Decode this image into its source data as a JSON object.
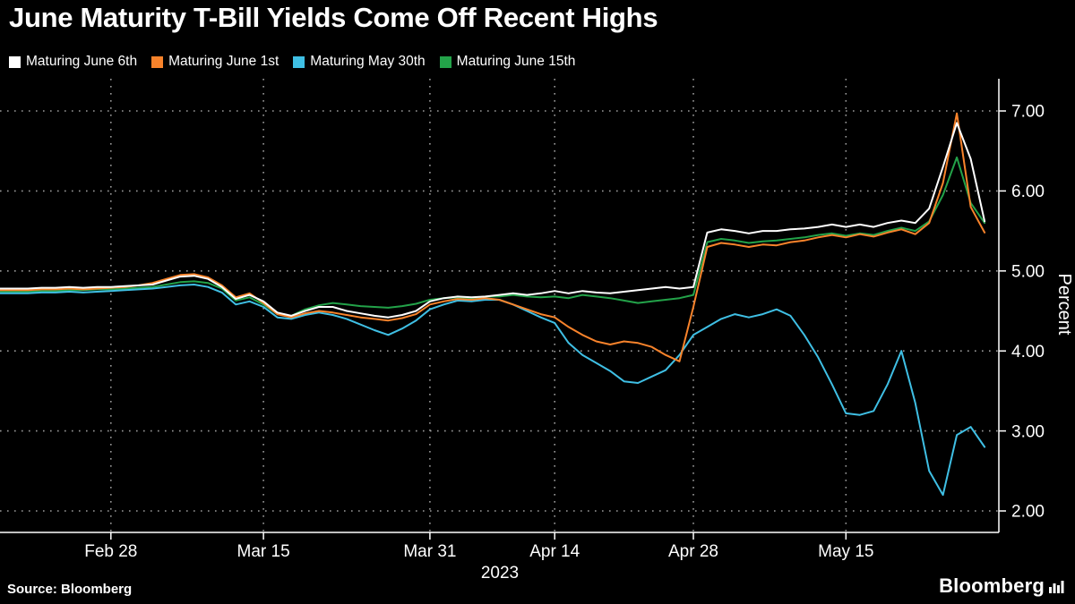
{
  "chart_data": {
    "type": "line",
    "title": "June Maturity T-Bill Yields Come Off Recent Highs",
    "xlabel": "2023",
    "ylabel": "Percent",
    "ylim": [
      1.7,
      7.4
    ],
    "grid": "dotted",
    "legend_position": "top-left",
    "x_description": "Business days from mid-Feb 2023 (index 0) through May 30 2023 (index 71)",
    "x_tick_indices": [
      8,
      19,
      31,
      40,
      50,
      61
    ],
    "x_tick_labels": [
      "Feb 28",
      "Mar 15",
      "Mar 31",
      "Apr 14",
      "Apr 28",
      "May 15"
    ],
    "y_ticks": [
      7,
      6,
      5,
      4,
      3,
      2
    ],
    "y_tick_labels": [
      "7.00",
      "6.00",
      "5.00",
      "4.00",
      "3.00",
      "2.00"
    ],
    "series": [
      {
        "name": "Maturing June 6th",
        "color": "#ffffff",
        "values": [
          4.78,
          4.78,
          4.78,
          4.79,
          4.79,
          4.8,
          4.79,
          4.8,
          4.8,
          4.81,
          4.82,
          4.83,
          4.88,
          4.93,
          4.94,
          4.9,
          4.8,
          4.65,
          4.7,
          4.62,
          4.48,
          4.44,
          4.5,
          4.55,
          4.55,
          4.5,
          4.47,
          4.44,
          4.42,
          4.45,
          4.5,
          4.62,
          4.66,
          4.68,
          4.67,
          4.68,
          4.7,
          4.72,
          4.7,
          4.72,
          4.75,
          4.72,
          4.75,
          4.73,
          4.72,
          4.74,
          4.76,
          4.78,
          4.8,
          4.78,
          4.8,
          5.48,
          5.52,
          5.5,
          5.47,
          5.5,
          5.5,
          5.52,
          5.53,
          5.55,
          5.58,
          5.55,
          5.58,
          5.55,
          5.6,
          5.63,
          5.6,
          5.78,
          6.3,
          6.85,
          6.4,
          5.62
        ]
      },
      {
        "name": "Maturing June 1st",
        "color": "#f8832b",
        "values": [
          4.76,
          4.76,
          4.76,
          4.77,
          4.77,
          4.78,
          4.77,
          4.78,
          4.79,
          4.8,
          4.82,
          4.85,
          4.9,
          4.95,
          4.96,
          4.92,
          4.82,
          4.67,
          4.72,
          4.6,
          4.46,
          4.42,
          4.47,
          4.5,
          4.48,
          4.45,
          4.42,
          4.4,
          4.38,
          4.41,
          4.46,
          4.58,
          4.62,
          4.65,
          4.64,
          4.66,
          4.64,
          4.58,
          4.52,
          4.46,
          4.42,
          4.3,
          4.2,
          4.12,
          4.08,
          4.12,
          4.1,
          4.05,
          3.95,
          3.87,
          4.55,
          5.3,
          5.35,
          5.33,
          5.3,
          5.33,
          5.32,
          5.36,
          5.38,
          5.42,
          5.45,
          5.42,
          5.46,
          5.43,
          5.48,
          5.52,
          5.46,
          5.6,
          6.1,
          6.97,
          5.8,
          5.48
        ]
      },
      {
        "name": "Maturing May 30th",
        "color": "#3fbfe4",
        "values": [
          4.72,
          4.72,
          4.72,
          4.73,
          4.73,
          4.74,
          4.73,
          4.74,
          4.75,
          4.76,
          4.77,
          4.78,
          4.8,
          4.82,
          4.83,
          4.8,
          4.73,
          4.58,
          4.62,
          4.55,
          4.42,
          4.4,
          4.45,
          4.48,
          4.45,
          4.4,
          4.33,
          4.26,
          4.2,
          4.28,
          4.38,
          4.52,
          4.58,
          4.63,
          4.62,
          4.64,
          4.64,
          4.58,
          4.5,
          4.42,
          4.35,
          4.1,
          3.95,
          3.85,
          3.75,
          3.62,
          3.6,
          3.68,
          3.76,
          3.95,
          4.2,
          4.3,
          4.4,
          4.46,
          4.42,
          4.46,
          4.52,
          4.44,
          4.2,
          3.92,
          3.58,
          3.22,
          3.2,
          3.25,
          3.58,
          4.0,
          3.35,
          2.5,
          2.2,
          2.95,
          3.05,
          2.8
        ]
      },
      {
        "name": "Maturing June 15th",
        "color": "#23a249",
        "values": [
          4.74,
          4.74,
          4.74,
          4.75,
          4.75,
          4.76,
          4.76,
          4.77,
          4.77,
          4.78,
          4.79,
          4.8,
          4.83,
          4.86,
          4.87,
          4.85,
          4.78,
          4.63,
          4.67,
          4.58,
          4.46,
          4.44,
          4.52,
          4.57,
          4.6,
          4.58,
          4.56,
          4.55,
          4.54,
          4.56,
          4.59,
          4.64,
          4.66,
          4.67,
          4.66,
          4.68,
          4.68,
          4.7,
          4.68,
          4.67,
          4.68,
          4.66,
          4.7,
          4.68,
          4.66,
          4.63,
          4.6,
          4.62,
          4.64,
          4.66,
          4.7,
          5.36,
          5.4,
          5.38,
          5.35,
          5.37,
          5.38,
          5.4,
          5.42,
          5.45,
          5.47,
          5.44,
          5.47,
          5.45,
          5.5,
          5.54,
          5.5,
          5.62,
          5.95,
          6.42,
          5.85,
          5.6
        ]
      }
    ]
  },
  "footer": {
    "source_label": "Source: Bloomberg",
    "brand": "Bloomberg"
  }
}
